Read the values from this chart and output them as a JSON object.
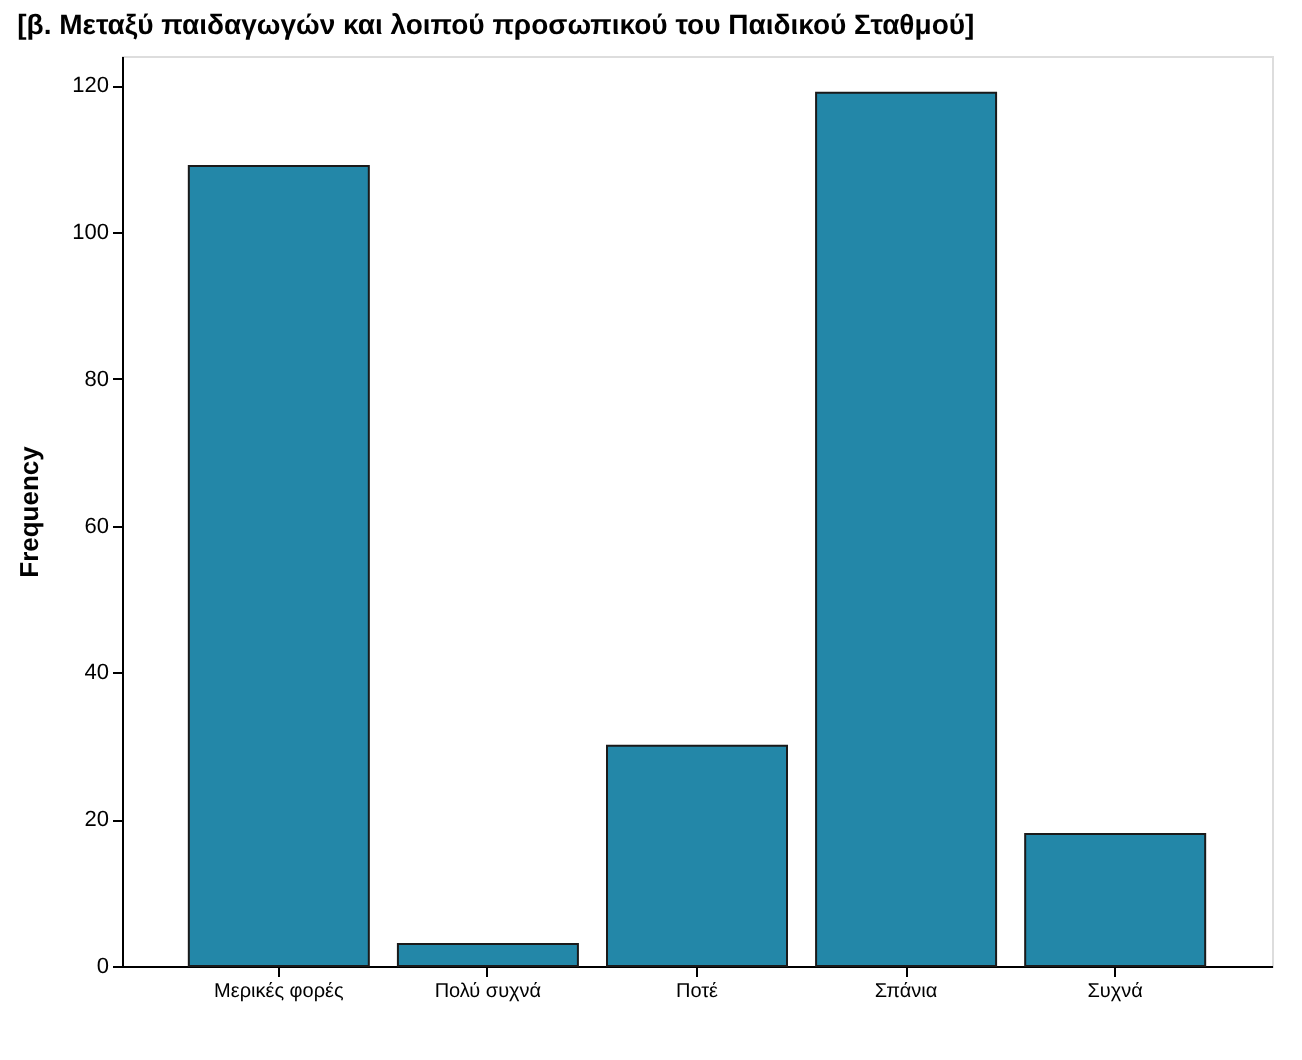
{
  "chart_data": {
    "type": "bar",
    "title": "[β. Μεταξύ παιδαγωγών και λοιπού προσωπικού του Παιδικού Σταθμού]",
    "categories": [
      "Μερικές φορές",
      "Πολύ συχνά",
      "Ποτέ",
      "Σπάνια",
      "Συχνά"
    ],
    "values": [
      109,
      3,
      30,
      119,
      18
    ],
    "color": "#2387a8",
    "ylabel": "Frequency",
    "ylim": [
      0,
      124
    ],
    "yticks": [
      0,
      20,
      40,
      60,
      80,
      100,
      120
    ],
    "grid": false
  }
}
